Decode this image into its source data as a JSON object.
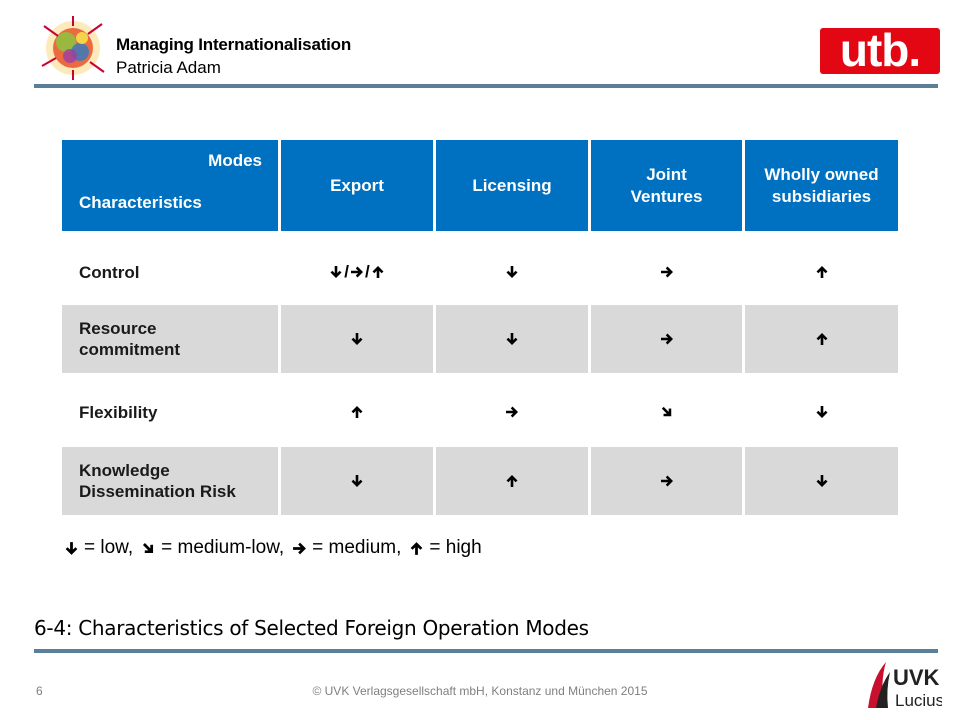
{
  "header": {
    "title": "Managing Internationalisation",
    "author": "Patricia Adam",
    "publisher_logo_text": "utb."
  },
  "table": {
    "header_modes": "Modes",
    "header_characteristics": "Characteristics",
    "columns": [
      "Export",
      "Licensing",
      "Joint Ventures",
      "Wholly owned subsidiaries"
    ],
    "rows": [
      {
        "label": "Control",
        "cells": [
          [
            "down",
            "right",
            "up"
          ],
          [
            "down"
          ],
          [
            "right"
          ],
          [
            "up"
          ]
        ]
      },
      {
        "label": "Resource commitment",
        "cells": [
          [
            "down"
          ],
          [
            "down"
          ],
          [
            "right"
          ],
          [
            "up"
          ]
        ]
      },
      {
        "label": "Flexibility",
        "cells": [
          [
            "up"
          ],
          [
            "right"
          ],
          [
            "down-right"
          ],
          [
            "down"
          ]
        ]
      },
      {
        "label": "Knowledge Dissemination Risk",
        "cells": [
          [
            "down"
          ],
          [
            "up"
          ],
          [
            "right"
          ],
          [
            "down"
          ]
        ]
      }
    ]
  },
  "legend": [
    {
      "icon": "down",
      "text": "= low,"
    },
    {
      "icon": "down-right",
      "text": "= medium-low,"
    },
    {
      "icon": "right",
      "text": "= medium,"
    },
    {
      "icon": "up",
      "text": "= high"
    }
  ],
  "caption": "6-4: Characteristics of Selected Foreign Operation Modes",
  "footer": {
    "page_number": "6",
    "copyright": "© UVK Verlagsgesellschaft mbH, Konstanz und München 2015",
    "logo_text_1": "UVK",
    "logo_text_2": "Lucius"
  },
  "colors": {
    "header_blue": "#0070c0",
    "row_shade": "#d9d9d9",
    "rule": "#5b7f99",
    "utb_red": "#e30613"
  }
}
